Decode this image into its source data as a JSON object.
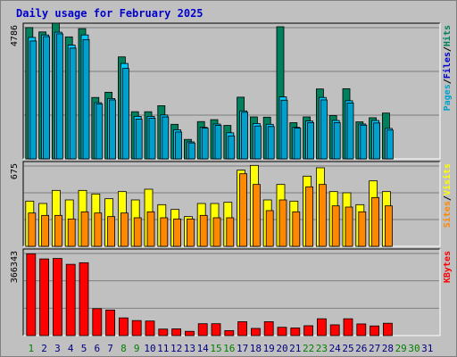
{
  "title": "Daily usage for February 2025",
  "colors": {
    "background": "#c0c0c0",
    "hits": "#00805c",
    "files": "#00c8ff",
    "pages": "#00a0cc",
    "visits": "#ffff00",
    "sites": "#ff8800",
    "kbytes": "#ff0000",
    "weekday_label": "#008000",
    "weekend_label": "#000080",
    "axis_value": "#000000"
  },
  "chart_data": [
    {
      "type": "bar",
      "title": "Daily usage for February 2025",
      "panel": "hits-files-pages",
      "y_max_label": "4786",
      "ylim": [
        0,
        4786
      ],
      "legend": [
        {
          "text": "Pages",
          "color": "#00a0cc"
        },
        {
          "text": "/",
          "color": "#000000"
        },
        {
          "text": "Files",
          "color": "#0000cc"
        },
        {
          "text": "/",
          "color": "#000000"
        },
        {
          "text": "Hits",
          "color": "#00805c"
        }
      ],
      "categories": [
        "1",
        "2",
        "3",
        "4",
        "5",
        "6",
        "7",
        "8",
        "9",
        "10",
        "11",
        "12",
        "13",
        "14",
        "15",
        "16",
        "17",
        "18",
        "19",
        "20",
        "21",
        "22",
        "23",
        "24",
        "25",
        "26",
        "27",
        "28",
        "29",
        "30",
        "31"
      ],
      "series": [
        {
          "name": "Hits",
          "values": [
            4790,
            4630,
            4950,
            4450,
            4750,
            2240,
            2430,
            3720,
            1720,
            1720,
            1940,
            1260,
            710,
            1360,
            1430,
            1220,
            2250,
            1530,
            1520,
            4820,
            1320,
            1530,
            2550,
            1580,
            2560,
            1350,
            1500,
            1670,
            null,
            null,
            null
          ]
        },
        {
          "name": "Files",
          "values": [
            4430,
            4520,
            4620,
            4150,
            4520,
            2050,
            2200,
            3480,
            1550,
            1550,
            1600,
            1060,
            620,
            1150,
            1270,
            950,
            1750,
            1290,
            1260,
            2260,
            1150,
            1380,
            2240,
            1400,
            2120,
            1270,
            1400,
            1110,
            null,
            null,
            null
          ]
        },
        {
          "name": "Pages",
          "values": [
            4300,
            4460,
            4560,
            4040,
            4350,
            2000,
            2150,
            3300,
            1450,
            1480,
            1530,
            980,
            580,
            1120,
            1220,
            840,
            1700,
            1200,
            1180,
            2140,
            1120,
            1320,
            2150,
            1320,
            2040,
            1230,
            1310,
            1050,
            null,
            null,
            null
          ]
        }
      ]
    },
    {
      "type": "bar",
      "panel": "visits-sites",
      "y_max_label": "675",
      "ylim": [
        0,
        675
      ],
      "legend": [
        {
          "text": "Sites",
          "color": "#ff8800"
        },
        {
          "text": "/",
          "color": "#000000"
        },
        {
          "text": "Visits",
          "color": "#ffff00"
        }
      ],
      "categories": [
        "1",
        "2",
        "3",
        "4",
        "5",
        "6",
        "7",
        "8",
        "9",
        "10",
        "11",
        "12",
        "13",
        "14",
        "15",
        "16",
        "17",
        "18",
        "19",
        "20",
        "21",
        "22",
        "23",
        "24",
        "25",
        "26",
        "27",
        "28",
        "29",
        "30",
        "31"
      ],
      "series": [
        {
          "name": "Visits",
          "values": [
            380,
            360,
            470,
            390,
            470,
            440,
            400,
            460,
            390,
            480,
            350,
            310,
            250,
            360,
            360,
            370,
            640,
            680,
            390,
            520,
            380,
            590,
            660,
            460,
            450,
            350,
            550,
            460,
            null,
            null,
            null
          ]
        },
        {
          "name": "Sites",
          "values": [
            280,
            260,
            260,
            230,
            290,
            280,
            250,
            280,
            240,
            290,
            240,
            230,
            230,
            260,
            240,
            240,
            610,
            520,
            300,
            390,
            290,
            500,
            520,
            340,
            330,
            290,
            410,
            340,
            null,
            null,
            null
          ]
        }
      ]
    },
    {
      "type": "bar",
      "panel": "kbytes",
      "y_max_label": "366343",
      "ylim": [
        0,
        366343
      ],
      "legend": [
        {
          "text": "KBytes",
          "color": "#ff0000"
        }
      ],
      "categories": [
        "1",
        "2",
        "3",
        "4",
        "5",
        "6",
        "7",
        "8",
        "9",
        "10",
        "11",
        "12",
        "13",
        "14",
        "15",
        "16",
        "17",
        "18",
        "19",
        "20",
        "21",
        "22",
        "23",
        "24",
        "25",
        "26",
        "27",
        "28",
        "29",
        "30",
        "31"
      ],
      "series": [
        {
          "name": "KBytes",
          "values": [
            365000,
            342000,
            344000,
            318000,
            325000,
            120000,
            114000,
            79000,
            67000,
            65000,
            29000,
            30000,
            19000,
            53000,
            53000,
            22000,
            62000,
            32000,
            62000,
            37000,
            34000,
            44000,
            75000,
            48000,
            75000,
            52000,
            43000,
            55000,
            null,
            null,
            null
          ]
        }
      ]
    }
  ],
  "x_axis": {
    "days": [
      "1",
      "2",
      "3",
      "4",
      "5",
      "6",
      "7",
      "8",
      "9",
      "10",
      "11",
      "12",
      "13",
      "14",
      "15",
      "16",
      "17",
      "18",
      "19",
      "20",
      "21",
      "22",
      "23",
      "24",
      "25",
      "26",
      "27",
      "28",
      "29",
      "30",
      "31"
    ],
    "weekend_days": [
      "1",
      "8",
      "9",
      "15",
      "16",
      "22",
      "23",
      "29",
      "30"
    ]
  }
}
